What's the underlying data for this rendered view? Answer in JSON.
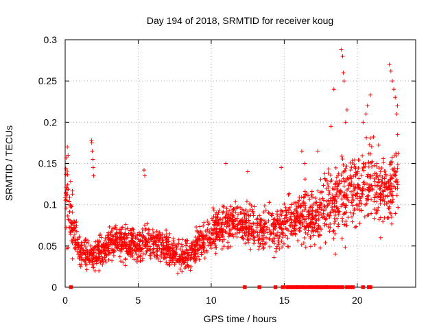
{
  "chart_data": {
    "type": "scatter",
    "title": "Day 194 of 2018, SRMTID for receiver koug",
    "xlabel": "GPS time / hours",
    "ylabel": "SRMTID / TECUs",
    "xlim": [
      0,
      24
    ],
    "ylim": [
      0,
      0.3
    ],
    "xticks": [
      0,
      5,
      10,
      15,
      20
    ],
    "yticks": [
      0,
      0.05,
      0.1,
      0.15,
      0.2,
      0.25,
      0.3
    ],
    "xtick_labels": [
      "0",
      "5",
      "10",
      "15",
      "20"
    ],
    "ytick_labels": [
      "0",
      "0.05",
      "0.1",
      "0.15",
      "0.2",
      "0.25",
      "0.3"
    ],
    "grid": true,
    "legend": "none",
    "marker": "+",
    "color": "#ff0000",
    "series": [
      {
        "name": "SRMTID",
        "trend_x": [
          0.0,
          0.3,
          0.7,
          1.0,
          1.5,
          2.0,
          2.5,
          3.0,
          3.5,
          4.0,
          4.5,
          5.0,
          5.5,
          6.0,
          6.5,
          7.0,
          7.5,
          8.0,
          8.5,
          9.0,
          9.5,
          10.0,
          10.5,
          11.0,
          11.5,
          12.0,
          12.5,
          13.0,
          13.5,
          14.0,
          14.5,
          15.0,
          15.5,
          16.0,
          16.5,
          17.0,
          17.5,
          18.0,
          18.5,
          19.0,
          19.5,
          20.0,
          20.5,
          21.0,
          21.5,
          22.0,
          22.5,
          22.8
        ],
        "trend_y": [
          0.115,
          0.095,
          0.06,
          0.045,
          0.035,
          0.04,
          0.045,
          0.05,
          0.055,
          0.055,
          0.055,
          0.05,
          0.055,
          0.055,
          0.05,
          0.045,
          0.04,
          0.035,
          0.04,
          0.05,
          0.06,
          0.065,
          0.07,
          0.075,
          0.08,
          0.08,
          0.075,
          0.075,
          0.07,
          0.075,
          0.07,
          0.075,
          0.08,
          0.085,
          0.09,
          0.09,
          0.095,
          0.1,
          0.105,
          0.11,
          0.115,
          0.12,
          0.125,
          0.13,
          0.12,
          0.11,
          0.13,
          0.14
        ],
        "spread_y": [
          0.03,
          0.03,
          0.018,
          0.012,
          0.012,
          0.012,
          0.012,
          0.013,
          0.013,
          0.014,
          0.014,
          0.014,
          0.014,
          0.014,
          0.013,
          0.013,
          0.012,
          0.011,
          0.012,
          0.013,
          0.015,
          0.016,
          0.017,
          0.018,
          0.018,
          0.018,
          0.018,
          0.018,
          0.018,
          0.018,
          0.018,
          0.018,
          0.02,
          0.022,
          0.024,
          0.025,
          0.026,
          0.028,
          0.03,
          0.032,
          0.033,
          0.033,
          0.032,
          0.03,
          0.026,
          0.024,
          0.03,
          0.03
        ],
        "highlights": [
          {
            "x": 0.15,
            "y": 0.17
          },
          {
            "x": 0.2,
            "y": 0.16
          },
          {
            "x": 1.8,
            "y": 0.178
          },
          {
            "x": 1.82,
            "y": 0.175
          },
          {
            "x": 1.85,
            "y": 0.165
          },
          {
            "x": 1.9,
            "y": 0.155
          },
          {
            "x": 1.92,
            "y": 0.145
          },
          {
            "x": 1.95,
            "y": 0.135
          },
          {
            "x": 5.4,
            "y": 0.142
          },
          {
            "x": 5.45,
            "y": 0.135
          },
          {
            "x": 11.0,
            "y": 0.15
          },
          {
            "x": 12.5,
            "y": 0.14
          },
          {
            "x": 14.8,
            "y": 0.145
          },
          {
            "x": 16.2,
            "y": 0.165
          },
          {
            "x": 16.4,
            "y": 0.15
          },
          {
            "x": 17.3,
            "y": 0.165
          },
          {
            "x": 18.2,
            "y": 0.195
          },
          {
            "x": 18.4,
            "y": 0.24
          },
          {
            "x": 18.9,
            "y": 0.288
          },
          {
            "x": 19.0,
            "y": 0.28
          },
          {
            "x": 19.05,
            "y": 0.26
          },
          {
            "x": 19.1,
            "y": 0.25
          },
          {
            "x": 19.2,
            "y": 0.2
          },
          {
            "x": 19.3,
            "y": 0.215
          },
          {
            "x": 20.4,
            "y": 0.2
          },
          {
            "x": 20.6,
            "y": 0.21
          },
          {
            "x": 20.9,
            "y": 0.233
          },
          {
            "x": 20.7,
            "y": 0.22
          },
          {
            "x": 22.2,
            "y": 0.27
          },
          {
            "x": 22.3,
            "y": 0.262
          },
          {
            "x": 22.4,
            "y": 0.25
          },
          {
            "x": 22.5,
            "y": 0.24
          },
          {
            "x": 22.6,
            "y": 0.23
          },
          {
            "x": 22.7,
            "y": 0.21
          },
          {
            "x": 22.75,
            "y": 0.22
          },
          {
            "x": 18.5,
            "y": 0.04
          },
          {
            "x": 21.6,
            "y": 0.06
          }
        ],
        "zero_points_x": [
          0.4,
          12.3,
          13.3,
          14.4,
          14.9,
          15.2,
          15.3,
          15.5,
          15.6,
          15.8,
          15.9,
          16.0,
          16.2,
          16.3,
          16.5,
          16.7,
          16.8,
          17.0,
          17.2,
          17.3,
          17.5,
          17.6,
          17.8,
          17.9,
          18.0,
          18.2,
          18.4,
          18.6,
          18.8,
          19.0,
          19.3,
          19.5,
          19.7,
          20.4,
          20.8,
          20.9
        ]
      }
    ]
  }
}
